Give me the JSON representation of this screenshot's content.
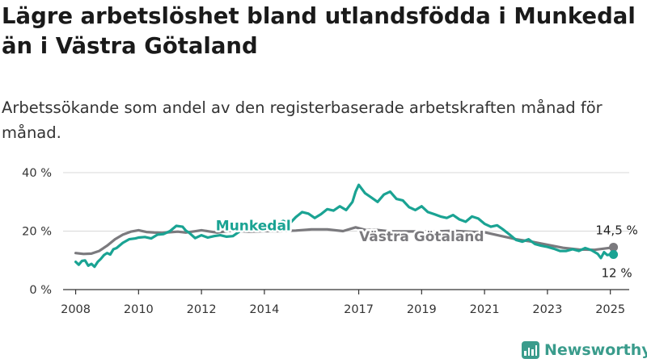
{
  "title": "Lägre arbetslöshet bland utlandsfödda i Munkedal än i Västra Götaland",
  "subtitle": "Arbetssökande som andel av den registerbaserade arbetskraften månad för månad.",
  "brand": {
    "name": "Newsworthy",
    "icon": "newsworthy-logo-icon"
  },
  "colors": {
    "munkedal": "#1aa393",
    "vastra_gotaland": "#7b7a7e",
    "grid": "#d9d9d9",
    "axis": "#333333"
  },
  "chart_data": {
    "type": "line",
    "title": "Lägre arbetslöshet bland utlandsfödda i Munkedal än i Västra Götaland",
    "subtitle": "Arbetssökande som andel av den registerbaserade arbetskraften månad för månad.",
    "xlabel": "",
    "ylabel": "",
    "xlim": [
      2007.6,
      2025.6
    ],
    "ylim": [
      0,
      40
    ],
    "grid": true,
    "x_ticks": [
      {
        "value": 2008,
        "label": "2008"
      },
      {
        "value": 2010,
        "label": "2010"
      },
      {
        "value": 2012,
        "label": "2012"
      },
      {
        "value": 2014,
        "label": "2014"
      },
      {
        "value": 2017,
        "label": "2017"
      },
      {
        "value": 2019,
        "label": "2019"
      },
      {
        "value": 2021,
        "label": "2021"
      },
      {
        "value": 2023,
        "label": "2023"
      },
      {
        "value": 2025,
        "label": "2025"
      }
    ],
    "y_ticks": [
      {
        "value": 0,
        "label": "0 %"
      },
      {
        "value": 20,
        "label": "20 %"
      },
      {
        "value": 40,
        "label": "40 %"
      }
    ],
    "series": [
      {
        "name": "Västra Götaland",
        "color": "#7b7a7e",
        "end_label": "14,5 %",
        "x": [
          2008.0,
          2008.25,
          2008.5,
          2008.75,
          2009.0,
          2009.25,
          2009.5,
          2009.75,
          2010.0,
          2010.25,
          2010.5,
          2010.75,
          2011.0,
          2011.25,
          2011.5,
          2011.75,
          2012.0,
          2012.25,
          2012.5,
          2012.75,
          2013.0,
          2013.5,
          2014.0,
          2014.5,
          2015.0,
          2015.5,
          2016.0,
          2016.5,
          2016.9,
          2017.25,
          2017.5,
          2018.0,
          2018.5,
          2019.0,
          2019.5,
          2020.0,
          2020.5,
          2021.0,
          2021.5,
          2022.0,
          2022.5,
          2023.0,
          2023.5,
          2024.0,
          2024.5,
          2025.0,
          2025.1
        ],
        "values": [
          12.5,
          12.2,
          12.3,
          13.2,
          15.0,
          17.2,
          18.8,
          19.8,
          20.3,
          19.7,
          19.5,
          19.4,
          19.6,
          19.8,
          19.5,
          19.9,
          20.3,
          19.9,
          19.5,
          19.9,
          20.2,
          19.8,
          20.0,
          20.0,
          20.2,
          20.6,
          20.6,
          20.0,
          21.3,
          20.3,
          20.5,
          19.9,
          19.9,
          19.9,
          19.9,
          20.1,
          19.8,
          19.6,
          18.4,
          17.2,
          16.4,
          15.3,
          14.3,
          13.7,
          13.6,
          14.3,
          14.5
        ]
      },
      {
        "name": "Munkedal",
        "color": "#1aa393",
        "end_label": "12 %",
        "x": [
          2008.0,
          2008.1,
          2008.2,
          2008.3,
          2008.4,
          2008.5,
          2008.6,
          2008.7,
          2008.8,
          2008.9,
          2009.0,
          2009.1,
          2009.2,
          2009.3,
          2009.5,
          2009.7,
          2009.9,
          2010.0,
          2010.2,
          2010.4,
          2010.6,
          2010.8,
          2011.0,
          2011.2,
          2011.4,
          2011.5,
          2011.6,
          2011.8,
          2012.0,
          2012.2,
          2012.4,
          2012.6,
          2012.8,
          2013.0,
          2013.2,
          2013.4,
          2013.6,
          2013.8,
          2014.0,
          2014.2,
          2014.4,
          2014.6,
          2014.8,
          2015.0,
          2015.2,
          2015.4,
          2015.6,
          2015.8,
          2016.0,
          2016.2,
          2016.4,
          2016.6,
          2016.8,
          2016.9,
          2017.0,
          2017.2,
          2017.4,
          2017.6,
          2017.8,
          2018.0,
          2018.2,
          2018.4,
          2018.6,
          2018.8,
          2019.0,
          2019.2,
          2019.4,
          2019.6,
          2019.8,
          2020.0,
          2020.2,
          2020.4,
          2020.6,
          2020.8,
          2021.0,
          2021.2,
          2021.4,
          2021.6,
          2021.8,
          2022.0,
          2022.2,
          2022.4,
          2022.6,
          2022.8,
          2023.0,
          2023.2,
          2023.4,
          2023.6,
          2023.8,
          2024.0,
          2024.2,
          2024.4,
          2024.6,
          2024.7,
          2024.8,
          2024.9,
          2025.0,
          2025.1
        ],
        "values": [
          9.5,
          8.5,
          9.8,
          10.0,
          8.2,
          8.8,
          7.8,
          9.5,
          10.5,
          11.8,
          12.5,
          12.0,
          13.8,
          14.2,
          16.0,
          17.2,
          17.5,
          17.8,
          18.0,
          17.5,
          18.8,
          19.0,
          20.0,
          21.8,
          21.5,
          20.2,
          19.5,
          17.6,
          18.6,
          17.8,
          18.3,
          18.6,
          18.1,
          18.3,
          19.8,
          22.0,
          21.0,
          20.4,
          21.2,
          20.8,
          22.5,
          23.5,
          22.5,
          24.8,
          26.5,
          26.0,
          24.5,
          25.8,
          27.5,
          27.0,
          28.5,
          27.2,
          30.0,
          33.5,
          35.8,
          33.0,
          31.5,
          30.0,
          32.5,
          33.5,
          31.0,
          30.5,
          28.2,
          27.2,
          28.5,
          26.5,
          25.8,
          25.0,
          24.5,
          25.5,
          24.0,
          23.2,
          25.0,
          24.3,
          22.5,
          21.5,
          22.0,
          20.5,
          18.8,
          17.0,
          16.4,
          17.2,
          15.6,
          15.0,
          14.6,
          14.0,
          13.2,
          13.2,
          13.8,
          13.2,
          14.2,
          13.5,
          12.2,
          10.8,
          12.8,
          11.8,
          12.0,
          12.0
        ]
      }
    ],
    "series_labels": [
      {
        "series": "Munkedal",
        "text": "Munkedal",
        "anchor_x": 2013.65,
        "anchor_y": 20.3,
        "color": "#1aa393"
      },
      {
        "series": "Västra Götaland",
        "text": "Västra Götaland",
        "anchor_x": 2019.0,
        "anchor_y": 16.5,
        "color": "#7b7a7e"
      }
    ]
  }
}
